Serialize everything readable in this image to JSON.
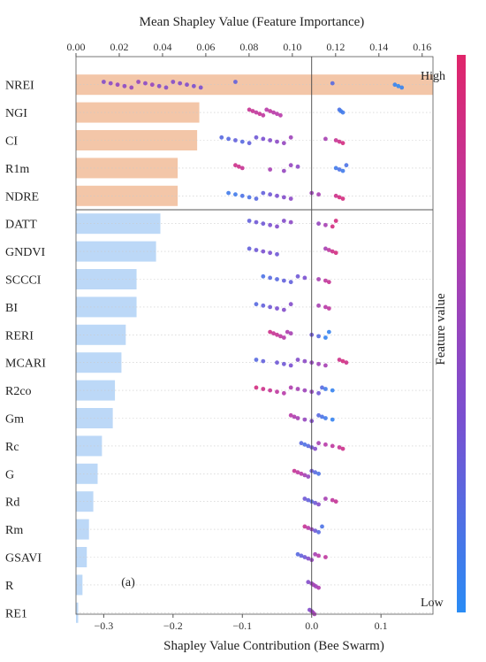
{
  "chart_data": {
    "type": "bar+beeswarm",
    "top_axis": {
      "title": "Mean Shapley Value (Feature Importance)",
      "ticks": [
        "0.00",
        "0.02",
        "0.04",
        "0.06",
        "0.08",
        "0.10",
        "0.12",
        "0.14",
        "0.16"
      ],
      "xlim": [
        0.0,
        0.165
      ]
    },
    "bottom_axis": {
      "title": "Shapley Value Contribution (Bee Swarm)",
      "ticks": [
        "−0.3",
        "−0.2",
        "−0.1",
        "0.0",
        "0.1"
      ],
      "xlim": [
        -0.34,
        0.175
      ]
    },
    "colorbar": {
      "label": "Feature value",
      "high": "High",
      "low": "Low",
      "colors": [
        "#2a8cf5",
        "#7a4fd0",
        "#b83aa8",
        "#e0256a"
      ]
    },
    "panel_label": "(a)",
    "grid": false,
    "features": [
      {
        "name": "NREI",
        "importance": 0.165,
        "bar_color": "#f3c6a8",
        "group": "top"
      },
      {
        "name": "NGI",
        "importance": 0.057,
        "bar_color": "#f3c6a8",
        "group": "top"
      },
      {
        "name": "CI",
        "importance": 0.056,
        "bar_color": "#f3c6a8",
        "group": "top"
      },
      {
        "name": "R1m",
        "importance": 0.047,
        "bar_color": "#f3c6a8",
        "group": "top"
      },
      {
        "name": "NDRE",
        "importance": 0.047,
        "bar_color": "#f3c6a8",
        "group": "top"
      },
      {
        "name": "DATT",
        "importance": 0.039,
        "bar_color": "#bcd8f7",
        "group": "rest"
      },
      {
        "name": "GNDVI",
        "importance": 0.037,
        "bar_color": "#bcd8f7",
        "group": "rest"
      },
      {
        "name": "SCCCI",
        "importance": 0.028,
        "bar_color": "#bcd8f7",
        "group": "rest"
      },
      {
        "name": "BI",
        "importance": 0.028,
        "bar_color": "#bcd8f7",
        "group": "rest"
      },
      {
        "name": "RERI",
        "importance": 0.023,
        "bar_color": "#bcd8f7",
        "group": "rest"
      },
      {
        "name": "MCARI",
        "importance": 0.021,
        "bar_color": "#bcd8f7",
        "group": "rest"
      },
      {
        "name": "R2co",
        "importance": 0.018,
        "bar_color": "#bcd8f7",
        "group": "rest"
      },
      {
        "name": "Gm",
        "importance": 0.017,
        "bar_color": "#bcd8f7",
        "group": "rest"
      },
      {
        "name": "Rc",
        "importance": 0.012,
        "bar_color": "#bcd8f7",
        "group": "rest"
      },
      {
        "name": "G",
        "importance": 0.01,
        "bar_color": "#bcd8f7",
        "group": "rest"
      },
      {
        "name": "Rd",
        "importance": 0.008,
        "bar_color": "#bcd8f7",
        "group": "rest"
      },
      {
        "name": "Rm",
        "importance": 0.006,
        "bar_color": "#bcd8f7",
        "group": "rest"
      },
      {
        "name": "GSAVI",
        "importance": 0.005,
        "bar_color": "#bcd8f7",
        "group": "rest"
      },
      {
        "name": "R",
        "importance": 0.003,
        "bar_color": "#bcd8f7",
        "group": "rest"
      },
      {
        "name": "RE1",
        "importance": 0.001,
        "bar_color": "#bcd8f7",
        "group": "rest"
      }
    ],
    "swarm": [
      {
        "feature": "NREI",
        "points": [
          [
            -0.3,
            0.4
          ],
          [
            -0.29,
            0.45
          ],
          [
            -0.28,
            0.5
          ],
          [
            -0.27,
            0.45
          ],
          [
            -0.26,
            0.5
          ],
          [
            -0.25,
            0.5
          ],
          [
            -0.24,
            0.45
          ],
          [
            -0.23,
            0.5
          ],
          [
            -0.22,
            0.4
          ],
          [
            -0.21,
            0.4
          ],
          [
            -0.2,
            0.4
          ],
          [
            -0.19,
            0.4
          ],
          [
            -0.18,
            0.4
          ],
          [
            -0.17,
            0.35
          ],
          [
            -0.16,
            0.35
          ],
          [
            -0.11,
            0.25
          ],
          [
            0.03,
            0.2
          ],
          [
            0.12,
            0.05
          ],
          [
            0.125,
            0.02
          ],
          [
            0.13,
            0.05
          ]
        ]
      },
      {
        "feature": "NGI",
        "points": [
          [
            -0.09,
            0.8
          ],
          [
            -0.085,
            0.8
          ],
          [
            -0.08,
            0.75
          ],
          [
            -0.075,
            0.8
          ],
          [
            -0.07,
            0.75
          ],
          [
            -0.065,
            0.7
          ],
          [
            -0.06,
            0.75
          ],
          [
            -0.055,
            0.7
          ],
          [
            -0.05,
            0.7
          ],
          [
            -0.045,
            0.7
          ],
          [
            0.04,
            0.15
          ],
          [
            0.042,
            0.1
          ],
          [
            0.045,
            0.1
          ]
        ]
      },
      {
        "feature": "CI",
        "points": [
          [
            -0.13,
            0.2
          ],
          [
            -0.12,
            0.2
          ],
          [
            -0.11,
            0.25
          ],
          [
            -0.1,
            0.2
          ],
          [
            -0.09,
            0.25
          ],
          [
            -0.08,
            0.3
          ],
          [
            -0.07,
            0.35
          ],
          [
            -0.06,
            0.4
          ],
          [
            -0.05,
            0.45
          ],
          [
            -0.04,
            0.5
          ],
          [
            -0.03,
            0.55
          ],
          [
            0.02,
            0.6
          ],
          [
            0.035,
            0.8
          ],
          [
            0.04,
            0.85
          ],
          [
            0.045,
            0.9
          ]
        ]
      },
      {
        "feature": "R1m",
        "points": [
          [
            -0.11,
            0.85
          ],
          [
            -0.105,
            0.85
          ],
          [
            -0.1,
            0.8
          ],
          [
            -0.06,
            0.6
          ],
          [
            -0.04,
            0.5
          ],
          [
            -0.03,
            0.5
          ],
          [
            -0.02,
            0.45
          ],
          [
            0.035,
            0.1
          ],
          [
            0.04,
            0.15
          ],
          [
            0.045,
            0.1
          ],
          [
            0.05,
            0.15
          ]
        ]
      },
      {
        "feature": "NDRE",
        "points": [
          [
            -0.12,
            0.1
          ],
          [
            -0.11,
            0.1
          ],
          [
            -0.1,
            0.15
          ],
          [
            -0.09,
            0.15
          ],
          [
            -0.08,
            0.2
          ],
          [
            -0.07,
            0.25
          ],
          [
            -0.06,
            0.3
          ],
          [
            -0.05,
            0.35
          ],
          [
            -0.04,
            0.4
          ],
          [
            -0.03,
            0.45
          ],
          [
            0.0,
            0.55
          ],
          [
            0.01,
            0.6
          ],
          [
            0.035,
            0.85
          ],
          [
            0.04,
            0.9
          ],
          [
            0.045,
            0.9
          ]
        ]
      },
      {
        "feature": "DATT",
        "points": [
          [
            -0.09,
            0.25
          ],
          [
            -0.08,
            0.3
          ],
          [
            -0.07,
            0.3
          ],
          [
            -0.06,
            0.35
          ],
          [
            -0.05,
            0.4
          ],
          [
            -0.04,
            0.4
          ],
          [
            -0.03,
            0.45
          ],
          [
            0.01,
            0.5
          ],
          [
            0.02,
            0.6
          ],
          [
            0.03,
            0.9
          ],
          [
            0.035,
            0.9
          ]
        ]
      },
      {
        "feature": "GNDVI",
        "points": [
          [
            -0.09,
            0.25
          ],
          [
            -0.08,
            0.3
          ],
          [
            -0.07,
            0.35
          ],
          [
            -0.06,
            0.35
          ],
          [
            -0.05,
            0.3
          ],
          [
            0.02,
            0.6
          ],
          [
            0.025,
            0.75
          ],
          [
            0.03,
            0.85
          ],
          [
            0.035,
            0.9
          ]
        ]
      },
      {
        "feature": "SCCCI",
        "points": [
          [
            -0.07,
            0.15
          ],
          [
            -0.06,
            0.2
          ],
          [
            -0.05,
            0.2
          ],
          [
            -0.04,
            0.25
          ],
          [
            -0.03,
            0.25
          ],
          [
            -0.02,
            0.3
          ],
          [
            -0.01,
            0.35
          ],
          [
            0.01,
            0.6
          ],
          [
            0.02,
            0.75
          ],
          [
            0.025,
            0.8
          ]
        ]
      },
      {
        "feature": "BI",
        "points": [
          [
            -0.08,
            0.2
          ],
          [
            -0.07,
            0.25
          ],
          [
            -0.06,
            0.3
          ],
          [
            -0.05,
            0.35
          ],
          [
            -0.04,
            0.4
          ],
          [
            -0.03,
            0.4
          ],
          [
            0.01,
            0.6
          ],
          [
            0.02,
            0.7
          ],
          [
            0.025,
            0.75
          ]
        ]
      },
      {
        "feature": "RERI",
        "points": [
          [
            -0.06,
            0.85
          ],
          [
            -0.055,
            0.8
          ],
          [
            -0.05,
            0.8
          ],
          [
            -0.045,
            0.75
          ],
          [
            -0.04,
            0.7
          ],
          [
            -0.035,
            0.65
          ],
          [
            -0.03,
            0.6
          ],
          [
            0.0,
            0.3
          ],
          [
            0.01,
            0.2
          ],
          [
            0.02,
            0.05
          ],
          [
            0.025,
            0.05
          ]
        ]
      },
      {
        "feature": "MCARI",
        "points": [
          [
            -0.08,
            0.2
          ],
          [
            -0.07,
            0.25
          ],
          [
            -0.05,
            0.3
          ],
          [
            -0.04,
            0.3
          ],
          [
            -0.03,
            0.35
          ],
          [
            -0.02,
            0.4
          ],
          [
            -0.01,
            0.45
          ],
          [
            0.0,
            0.5
          ],
          [
            0.01,
            0.55
          ],
          [
            0.02,
            0.6
          ],
          [
            0.04,
            0.85
          ],
          [
            0.045,
            0.9
          ],
          [
            0.05,
            0.85
          ]
        ]
      },
      {
        "feature": "R2co",
        "points": [
          [
            -0.08,
            0.9
          ],
          [
            -0.07,
            0.85
          ],
          [
            -0.06,
            0.8
          ],
          [
            -0.05,
            0.75
          ],
          [
            -0.04,
            0.7
          ],
          [
            -0.03,
            0.65
          ],
          [
            -0.02,
            0.6
          ],
          [
            -0.01,
            0.55
          ],
          [
            0.0,
            0.5
          ],
          [
            0.01,
            0.3
          ],
          [
            0.015,
            0.2
          ],
          [
            0.02,
            0.1
          ],
          [
            0.03,
            0.05
          ]
        ]
      },
      {
        "feature": "Gm",
        "points": [
          [
            -0.03,
            0.7
          ],
          [
            -0.025,
            0.65
          ],
          [
            -0.02,
            0.6
          ],
          [
            -0.01,
            0.5
          ],
          [
            0.0,
            0.4
          ],
          [
            0.01,
            0.2
          ],
          [
            0.015,
            0.15
          ],
          [
            0.02,
            0.1
          ],
          [
            0.03,
            0.05
          ]
        ]
      },
      {
        "feature": "Rc",
        "points": [
          [
            -0.015,
            0.2
          ],
          [
            -0.01,
            0.15
          ],
          [
            -0.005,
            0.2
          ],
          [
            0.0,
            0.3
          ],
          [
            0.005,
            0.4
          ],
          [
            0.01,
            0.6
          ],
          [
            0.02,
            0.7
          ],
          [
            0.03,
            0.75
          ],
          [
            0.04,
            0.8
          ],
          [
            0.045,
            0.85
          ]
        ]
      },
      {
        "feature": "G",
        "points": [
          [
            -0.025,
            0.8
          ],
          [
            -0.02,
            0.75
          ],
          [
            -0.015,
            0.7
          ],
          [
            -0.01,
            0.6
          ],
          [
            -0.005,
            0.5
          ],
          [
            0.0,
            0.3
          ],
          [
            0.005,
            0.2
          ],
          [
            0.01,
            0.15
          ]
        ]
      },
      {
        "feature": "Rd",
        "points": [
          [
            -0.01,
            0.3
          ],
          [
            -0.005,
            0.25
          ],
          [
            0.0,
            0.2
          ],
          [
            0.005,
            0.3
          ],
          [
            0.01,
            0.4
          ],
          [
            0.02,
            0.6
          ],
          [
            0.03,
            0.75
          ],
          [
            0.035,
            0.8
          ]
        ]
      },
      {
        "feature": "Rm",
        "points": [
          [
            -0.01,
            0.8
          ],
          [
            -0.005,
            0.7
          ],
          [
            0.0,
            0.5
          ],
          [
            0.005,
            0.3
          ],
          [
            0.01,
            0.2
          ],
          [
            0.015,
            0.15
          ]
        ]
      },
      {
        "feature": "GSAVI",
        "points": [
          [
            -0.02,
            0.2
          ],
          [
            -0.015,
            0.25
          ],
          [
            -0.01,
            0.3
          ],
          [
            -0.005,
            0.4
          ],
          [
            0.0,
            0.5
          ],
          [
            0.005,
            0.6
          ],
          [
            0.01,
            0.7
          ],
          [
            0.02,
            0.75
          ]
        ]
      },
      {
        "feature": "R",
        "points": [
          [
            -0.005,
            0.4
          ],
          [
            0.0,
            0.5
          ],
          [
            0.003,
            0.6
          ],
          [
            0.006,
            0.55
          ],
          [
            0.01,
            0.65
          ]
        ]
      },
      {
        "feature": "RE1",
        "points": [
          [
            -0.003,
            0.4
          ],
          [
            0.0,
            0.5
          ],
          [
            0.002,
            0.55
          ],
          [
            0.004,
            0.6
          ]
        ]
      }
    ]
  }
}
